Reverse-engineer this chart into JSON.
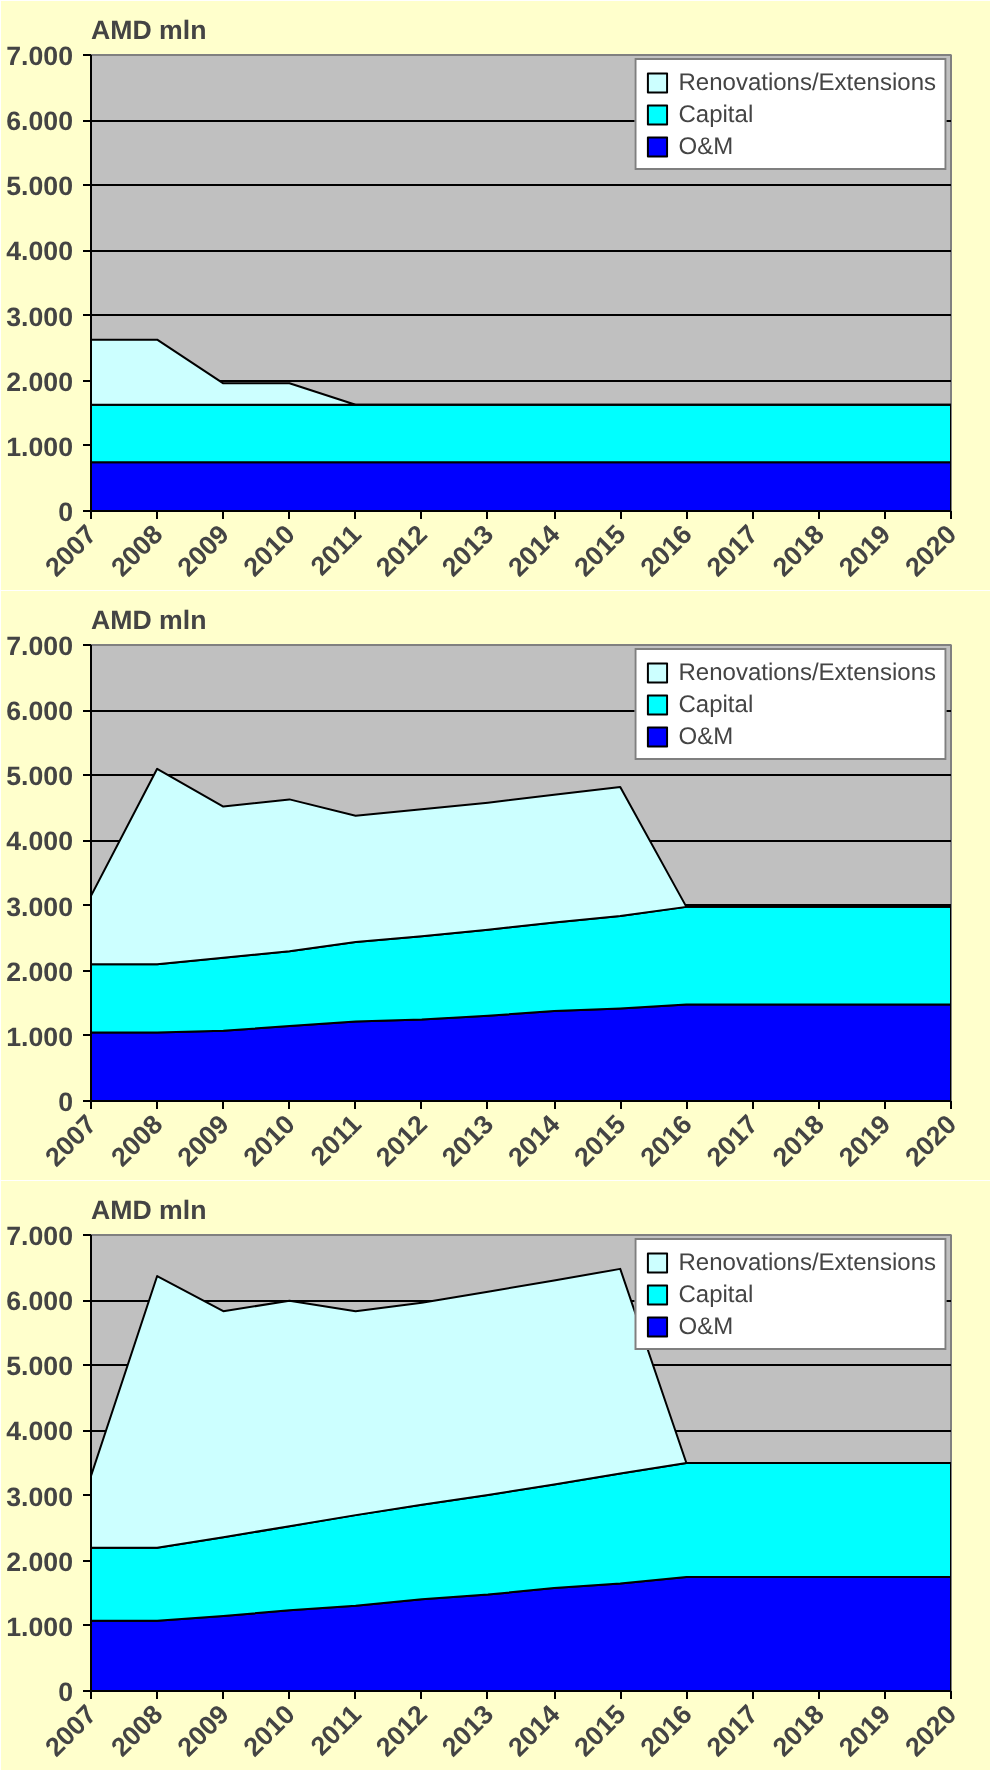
{
  "chart_data": [
    {
      "type": "area",
      "stacked": true,
      "ylabel": "AMD mln",
      "legend": "top right",
      "grid": "y",
      "categories": [
        "2007",
        "2008",
        "2009",
        "2010",
        "2011",
        "2012",
        "2013",
        "2014",
        "2015",
        "2016",
        "2017",
        "2018",
        "2019",
        "2020"
      ],
      "ylim": [
        0,
        7000
      ],
      "yticks": [
        0,
        {
          "value": 1000,
          "label": "1.000"
        },
        {
          "value": 2000,
          "label": "2.000"
        },
        {
          "value": 3000,
          "label": "3.000"
        },
        {
          "value": 4000,
          "label": "4.000"
        },
        {
          "value": 5000,
          "label": "5.000"
        },
        {
          "value": 6000,
          "label": "6.000"
        },
        {
          "value": 7000,
          "label": "7.000"
        }
      ],
      "series": [
        {
          "name": "O&M",
          "color": "#0000ff",
          "values": [
            750,
            750,
            750,
            750,
            750,
            750,
            750,
            750,
            750,
            750,
            750,
            750,
            750,
            750
          ]
        },
        {
          "name": "Capital",
          "color": "#00ffff",
          "values": [
            880,
            880,
            880,
            880,
            880,
            880,
            880,
            880,
            880,
            880,
            880,
            880,
            880,
            880
          ]
        },
        {
          "name": "Renovations/Extensions",
          "color": "#ccffff",
          "values": [
            1000,
            1000,
            330,
            330,
            0,
            0,
            0,
            0,
            0,
            0,
            0,
            0,
            0,
            0
          ]
        }
      ]
    },
    {
      "type": "area",
      "stacked": true,
      "ylabel": "AMD mln",
      "legend": "top right",
      "grid": "y",
      "categories": [
        "2007",
        "2008",
        "2009",
        "2010",
        "2011",
        "2012",
        "2013",
        "2014",
        "2015",
        "2016",
        "2017",
        "2018",
        "2019",
        "2020"
      ],
      "ylim": [
        0,
        7000
      ],
      "yticks": [
        0,
        {
          "value": 1000,
          "label": "1.000"
        },
        {
          "value": 2000,
          "label": "2.000"
        },
        {
          "value": 3000,
          "label": "3.000"
        },
        {
          "value": 4000,
          "label": "4.000"
        },
        {
          "value": 5000,
          "label": "5.000"
        },
        {
          "value": 6000,
          "label": "6.000"
        },
        {
          "value": 7000,
          "label": "7.000"
        }
      ],
      "series": [
        {
          "name": "O&M",
          "color": "#0000ff",
          "values": [
            1050,
            1050,
            1080,
            1150,
            1220,
            1250,
            1310,
            1380,
            1420,
            1480,
            1480,
            1480,
            1480,
            1480
          ]
        },
        {
          "name": "Capital",
          "color": "#00ffff",
          "values": [
            1050,
            1050,
            1120,
            1150,
            1220,
            1280,
            1320,
            1360,
            1420,
            1500,
            1500,
            1500,
            1500,
            1500
          ]
        },
        {
          "name": "Renovations/Extensions",
          "color": "#ccffff",
          "values": [
            1050,
            3000,
            2320,
            2330,
            1940,
            1950,
            1950,
            1960,
            1980,
            0,
            0,
            0,
            0,
            0
          ]
        }
      ]
    },
    {
      "type": "area",
      "stacked": true,
      "ylabel": "AMD mln",
      "legend": "top right",
      "grid": "y",
      "categories": [
        "2007",
        "2008",
        "2009",
        "2010",
        "2011",
        "2012",
        "2013",
        "2014",
        "2015",
        "2016",
        "2017",
        "2018",
        "2019",
        "2020"
      ],
      "ylim": [
        0,
        7000
      ],
      "yticks": [
        0,
        {
          "value": 1000,
          "label": "1.000"
        },
        {
          "value": 2000,
          "label": "2.000"
        },
        {
          "value": 3000,
          "label": "3.000"
        },
        {
          "value": 4000,
          "label": "4.000"
        },
        {
          "value": 5000,
          "label": "5.000"
        },
        {
          "value": 6000,
          "label": "6.000"
        },
        {
          "value": 7000,
          "label": "7.000"
        }
      ],
      "series": [
        {
          "name": "O&M",
          "color": "#0000ff",
          "values": [
            1080,
            1080,
            1150,
            1240,
            1310,
            1410,
            1480,
            1580,
            1650,
            1750,
            1750,
            1750,
            1750,
            1750
          ]
        },
        {
          "name": "Capital",
          "color": "#00ffff",
          "values": [
            1120,
            1120,
            1210,
            1290,
            1390,
            1450,
            1530,
            1590,
            1690,
            1750,
            1750,
            1750,
            1750,
            1750
          ]
        },
        {
          "name": "Renovations/Extensions",
          "color": "#ccffff",
          "values": [
            1100,
            4170,
            3470,
            3460,
            3130,
            3100,
            3120,
            3130,
            3140,
            0,
            0,
            0,
            0,
            0
          ]
        }
      ]
    }
  ]
}
